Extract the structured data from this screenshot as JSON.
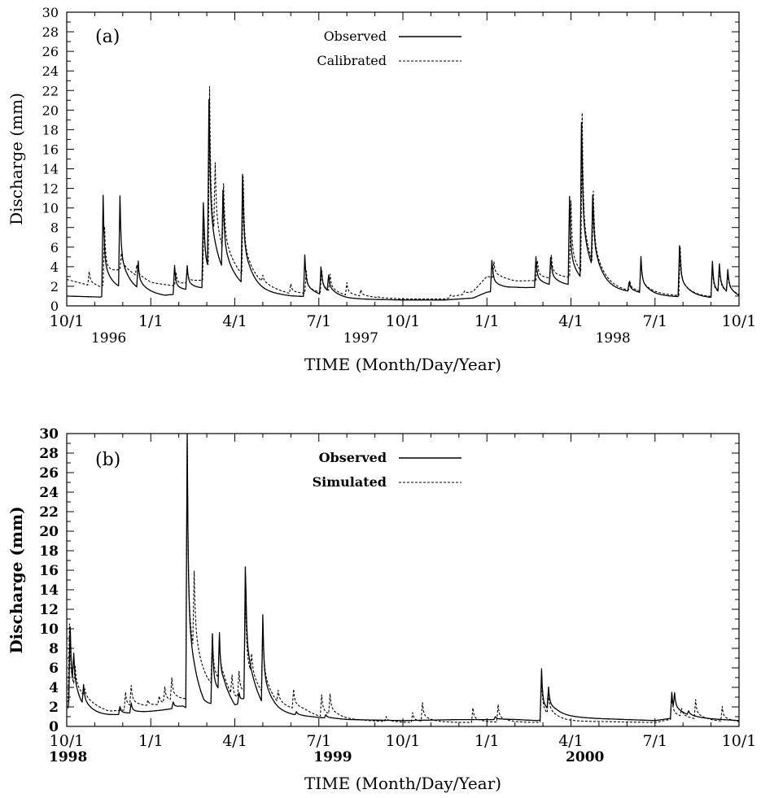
{
  "chart_data": [
    {
      "type": "line",
      "panel_label": "(a)",
      "ylabel": "Discharge (mm)",
      "xlabel": "TIME (Month/Day/Year)",
      "ylim": [
        0,
        30
      ],
      "yticks": [
        "0",
        "2",
        "4",
        "6",
        "8",
        "10",
        "12",
        "14",
        "16",
        "18",
        "20",
        "22",
        "24",
        "26",
        "28",
        "30"
      ],
      "xlim": [
        0,
        24
      ],
      "xticks": [
        {
          "m": 0,
          "label": "10/1"
        },
        {
          "m": 3,
          "label": "1/1"
        },
        {
          "m": 6,
          "label": "4/1"
        },
        {
          "m": 9,
          "label": "7/1"
        },
        {
          "m": 12,
          "label": "10/1"
        },
        {
          "m": 15,
          "label": "1/1"
        },
        {
          "m": 18,
          "label": "4/1"
        },
        {
          "m": 21,
          "label": "7/1"
        },
        {
          "m": 24,
          "label": "10/1"
        }
      ],
      "year_labels": [
        {
          "m": 1.5,
          "label": "1996"
        },
        {
          "m": 10.5,
          "label": "1997"
        },
        {
          "m": 19.5,
          "label": "1998"
        }
      ],
      "legend_position": "top-center",
      "series": [
        {
          "name": "Observed",
          "style": "solid",
          "peaks": [
            [
              1.3,
              11.3
            ],
            [
              1.9,
              10.6
            ],
            [
              2.55,
              4.0
            ],
            [
              3.85,
              4.1
            ],
            [
              4.3,
              3.8
            ],
            [
              4.88,
              11.3
            ],
            [
              5.08,
              20.8
            ],
            [
              5.58,
              10.6
            ],
            [
              6.28,
              14.0
            ],
            [
              8.5,
              5.2
            ],
            [
              9.08,
              4.0
            ],
            [
              9.35,
              2.5
            ],
            [
              15.18,
              5.0
            ],
            [
              16.75,
              5.0
            ],
            [
              17.28,
              5.0
            ],
            [
              17.95,
              11.0
            ],
            [
              18.38,
              19.5
            ],
            [
              18.78,
              9.8
            ],
            [
              20.08,
              2.4
            ],
            [
              20.5,
              4.9
            ],
            [
              21.88,
              6.7
            ],
            [
              23.05,
              4.5
            ],
            [
              23.3,
              3.6
            ],
            [
              23.6,
              3.0
            ],
            [
              24.3,
              2.6
            ]
          ],
          "base": [
            [
              0,
              1.0
            ],
            [
              1.2,
              0.9
            ],
            [
              2.0,
              1.4
            ],
            [
              3.5,
              1.0
            ],
            [
              4.8,
              1.6
            ],
            [
              6.0,
              1.8
            ],
            [
              7.0,
              1.3
            ],
            [
              8.0,
              1.0
            ],
            [
              9.0,
              0.9
            ],
            [
              10.0,
              0.7
            ],
            [
              12.0,
              0.6
            ],
            [
              13.5,
              0.6
            ],
            [
              14.5,
              0.8
            ],
            [
              15.0,
              1.4
            ],
            [
              16.0,
              1.8
            ],
            [
              17.0,
              1.9
            ],
            [
              18.0,
              2.0
            ],
            [
              19.0,
              1.6
            ],
            [
              20.0,
              1.4
            ],
            [
              21.0,
              1.0
            ],
            [
              22.0,
              0.9
            ],
            [
              23.0,
              0.8
            ],
            [
              24.5,
              0.5
            ]
          ]
        },
        {
          "name": "Calibrated",
          "style": "dashed",
          "peaks": [
            [
              0.8,
              3.5
            ],
            [
              1.35,
              8.0
            ],
            [
              1.95,
              5.0
            ],
            [
              2.5,
              4.0
            ],
            [
              3.9,
              3.4
            ],
            [
              4.3,
              3.3
            ],
            [
              4.9,
              9.0
            ],
            [
              5.1,
              21.0
            ],
            [
              5.3,
              10.0
            ],
            [
              5.6,
              9.5
            ],
            [
              6.3,
              12.5
            ],
            [
              7.0,
              2.6
            ],
            [
              8.0,
              2.2
            ],
            [
              8.55,
              3.5
            ],
            [
              9.1,
              3.5
            ],
            [
              9.4,
              2.8
            ],
            [
              10.0,
              2.2
            ],
            [
              10.5,
              1.5
            ],
            [
              11.1,
              0.9
            ],
            [
              13.7,
              1.1
            ],
            [
              14.2,
              1.5
            ],
            [
              15.25,
              4.5
            ],
            [
              16.8,
              4.6
            ],
            [
              17.3,
              5.0
            ],
            [
              18.0,
              10.6
            ],
            [
              18.4,
              18.8
            ],
            [
              18.8,
              9.6
            ],
            [
              20.1,
              2.5
            ],
            [
              20.5,
              4.5
            ],
            [
              21.9,
              6.0
            ],
            [
              23.05,
              3.8
            ],
            [
              23.3,
              3.3
            ],
            [
              23.6,
              2.8
            ],
            [
              24.3,
              2.5
            ]
          ],
          "base": [
            [
              0,
              2.7
            ],
            [
              1.2,
              1.8
            ],
            [
              2.0,
              3.5
            ],
            [
              3.0,
              2.3
            ],
            [
              4.0,
              2.0
            ],
            [
              4.8,
              2.5
            ],
            [
              6.0,
              2.7
            ],
            [
              7.0,
              1.9
            ],
            [
              8.0,
              1.2
            ],
            [
              9.0,
              1.2
            ],
            [
              10.0,
              0.9
            ],
            [
              12.0,
              0.7
            ],
            [
              13.5,
              0.7
            ],
            [
              14.5,
              1.4
            ],
            [
              15.0,
              3.0
            ],
            [
              16.0,
              2.5
            ],
            [
              17.0,
              2.6
            ],
            [
              18.0,
              2.8
            ],
            [
              19.0,
              2.0
            ],
            [
              20.0,
              1.5
            ],
            [
              21.0,
              1.2
            ],
            [
              22.0,
              1.0
            ],
            [
              23.0,
              0.9
            ],
            [
              24.5,
              0.7
            ]
          ]
        }
      ]
    },
    {
      "type": "line",
      "panel_label": "(b)",
      "ylabel": "Discharge (mm)",
      "xlabel": "TIME (Month/Day/Year)",
      "ylim": [
        0,
        30
      ],
      "yticks": [
        "0",
        "2",
        "4",
        "6",
        "8",
        "10",
        "12",
        "14",
        "16",
        "18",
        "20",
        "22",
        "24",
        "26",
        "28",
        "30"
      ],
      "xlim": [
        0,
        24
      ],
      "xticks": [
        {
          "m": 0,
          "label": "10/1"
        },
        {
          "m": 3,
          "label": "1/1"
        },
        {
          "m": 6,
          "label": "4/1"
        },
        {
          "m": 9,
          "label": "7/1"
        },
        {
          "m": 12,
          "label": "10/1"
        },
        {
          "m": 15,
          "label": "1/1"
        },
        {
          "m": 18,
          "label": "4/1"
        },
        {
          "m": 21,
          "label": "7/1"
        },
        {
          "m": 24,
          "label": "10/1"
        }
      ],
      "year_labels": [
        {
          "m": 0,
          "label": "1998"
        },
        {
          "m": 9.5,
          "label": "1999"
        },
        {
          "m": 18.5,
          "label": "2000"
        }
      ],
      "legend_position": "top-center",
      "series": [
        {
          "name": "Observed",
          "style": "solid",
          "peaks": [
            [
              0.12,
              11.0
            ],
            [
              0.25,
              5.0
            ],
            [
              0.6,
              3.0
            ],
            [
              1.9,
              2.0
            ],
            [
              2.3,
              2.3
            ],
            [
              3.8,
              2.5
            ],
            [
              4.3,
              30.0
            ],
            [
              5.2,
              8.8
            ],
            [
              5.45,
              8.0
            ],
            [
              6.15,
              3.0
            ],
            [
              6.38,
              17.4
            ],
            [
              7.0,
              10.5
            ],
            [
              8.2,
              1.4
            ],
            [
              8.5,
              1.0
            ],
            [
              9.25,
              1.2
            ],
            [
              15.3,
              1.0
            ],
            [
              16.95,
              5.9
            ],
            [
              17.2,
              3.1
            ],
            [
              21.6,
              3.5
            ],
            [
              21.7,
              2.6
            ],
            [
              22.2,
              1.3
            ],
            [
              22.3,
              0.8
            ]
          ],
          "base": [
            [
              0,
              2.0
            ],
            [
              0.5,
              1.0
            ],
            [
              1.5,
              1.1
            ],
            [
              2.5,
              1.3
            ],
            [
              3.5,
              1.7
            ],
            [
              4.15,
              2.0
            ],
            [
              4.9,
              1.0
            ],
            [
              5.6,
              2.5
            ],
            [
              6.0,
              1.5
            ],
            [
              6.5,
              2.8
            ],
            [
              7.0,
              1.4
            ],
            [
              7.5,
              1.2
            ],
            [
              8.5,
              1.0
            ],
            [
              9.0,
              0.9
            ],
            [
              10.0,
              0.7
            ],
            [
              12.0,
              0.6
            ],
            [
              14.0,
              0.7
            ],
            [
              16.0,
              0.7
            ],
            [
              16.8,
              0.6
            ],
            [
              17.5,
              1.0
            ],
            [
              19.0,
              0.8
            ],
            [
              21.0,
              0.6
            ],
            [
              21.5,
              0.8
            ],
            [
              22.0,
              0.9
            ],
            [
              24.0,
              0.6
            ]
          ]
        },
        {
          "name": "Simulated",
          "style": "dashed",
          "peaks": [
            [
              0.1,
              10.5
            ],
            [
              0.3,
              4.5
            ],
            [
              0.65,
              3.0
            ],
            [
              2.1,
              3.5
            ],
            [
              2.3,
              3.8
            ],
            [
              2.9,
              2.5
            ],
            [
              3.3,
              3.0
            ],
            [
              3.5,
              3.8
            ],
            [
              3.75,
              4.6
            ],
            [
              4.3,
              29.5
            ],
            [
              4.55,
              11.0
            ],
            [
              5.2,
              8.3
            ],
            [
              5.45,
              7.5
            ],
            [
              5.9,
              4.5
            ],
            [
              6.15,
              4.9
            ],
            [
              6.38,
              13.0
            ],
            [
              6.6,
              5.0
            ],
            [
              7.0,
              9.8
            ],
            [
              7.55,
              3.0
            ],
            [
              8.1,
              3.6
            ],
            [
              9.1,
              3.2
            ],
            [
              9.4,
              3.0
            ],
            [
              11.4,
              1.0
            ],
            [
              12.35,
              1.4
            ],
            [
              12.7,
              2.3
            ],
            [
              14.5,
              1.9
            ],
            [
              15.4,
              2.2
            ],
            [
              16.95,
              5.0
            ],
            [
              17.2,
              2.6
            ],
            [
              21.6,
              3.3
            ],
            [
              21.95,
              1.5
            ],
            [
              22.45,
              2.6
            ],
            [
              23.4,
              2.0
            ],
            [
              24.9,
              1.5
            ]
          ],
          "base": [
            [
              0,
              2.6
            ],
            [
              0.5,
              2.3
            ],
            [
              1.5,
              1.5
            ],
            [
              2.5,
              1.8
            ],
            [
              3.5,
              2.2
            ],
            [
              4.15,
              2.5
            ],
            [
              4.9,
              3.0
            ],
            [
              5.6,
              3.5
            ],
            [
              6.0,
              2.0
            ],
            [
              6.5,
              3.0
            ],
            [
              7.0,
              2.5
            ],
            [
              7.5,
              1.8
            ],
            [
              8.5,
              1.5
            ],
            [
              9.0,
              1.0
            ],
            [
              10.0,
              0.7
            ],
            [
              12.0,
              0.4
            ],
            [
              14.0,
              0.4
            ],
            [
              16.0,
              0.4
            ],
            [
              16.8,
              0.4
            ],
            [
              17.5,
              0.5
            ],
            [
              19.0,
              0.5
            ],
            [
              21.0,
              0.4
            ],
            [
              21.5,
              0.7
            ],
            [
              22.0,
              0.7
            ],
            [
              24.0,
              0.4
            ]
          ]
        }
      ]
    }
  ]
}
